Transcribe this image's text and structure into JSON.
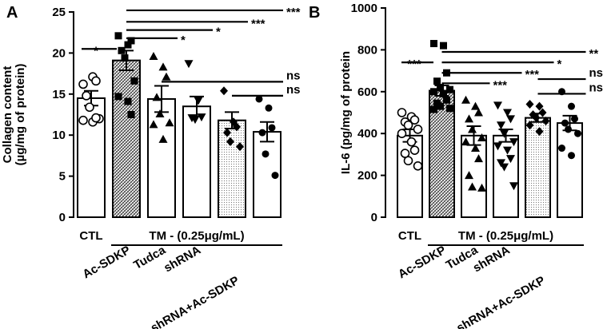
{
  "chart_data": [
    {
      "panel": "A",
      "type": "bar",
      "ylabel": "Collagen  content",
      "ylabel2": "(µg/mg of protein)",
      "ylim": [
        0,
        25
      ],
      "yticks": [
        0,
        5,
        10,
        15,
        20,
        25
      ],
      "groups": [
        {
          "name": "CTL",
          "mean": 14.5,
          "sem": 0.9,
          "fill": "white",
          "marker": "circle",
          "points": [
            16.2,
            17.1,
            16.6,
            14.8,
            13.4,
            12.0,
            11.8,
            11.6,
            12.1
          ]
        },
        {
          "name": "Ac-SDKP",
          "mean": 19.1,
          "sem": 1.2,
          "fill": "hatch",
          "marker": "square",
          "points": [
            22.1,
            21.0,
            21.5,
            20.3,
            19.4,
            16.6,
            14.7,
            14.1,
            12.5
          ]
        },
        {
          "name": "Tudca",
          "mean": 14.4,
          "sem": 1.6,
          "fill": "white",
          "marker": "triangle",
          "points": [
            19.6,
            18.3,
            17.1,
            14.6,
            12.6,
            11.5,
            11.3,
            9.5
          ]
        },
        {
          "name": "shRNA",
          "mean": 13.5,
          "sem": 1.2,
          "fill": "white",
          "marker": "triangle-down",
          "points": [
            18.7,
            14.2,
            12.2,
            12.1,
            11.9
          ]
        },
        {
          "name": "shRNA+Ac-SDKP",
          "mean": 11.8,
          "sem": 1.0,
          "fill": "dots",
          "marker": "diamond",
          "points": [
            15.4,
            11.6,
            11.0,
            10.3,
            9.2,
            8.6
          ]
        },
        {
          "name": "",
          "mean": 10.4,
          "sem": 1.2,
          "fill": "white",
          "marker": "dot",
          "points": [
            14.4,
            13.3,
            10.9,
            10.3,
            7.7,
            5.1
          ]
        }
      ],
      "comparisons": [
        {
          "label": "*",
          "from": 0,
          "to": 1,
          "at": 20.5
        },
        {
          "label": "***",
          "from": 1,
          "to": 5,
          "at": 25.2
        },
        {
          "label": "***",
          "from": 1,
          "to": 4,
          "at": 23.8
        },
        {
          "label": "*",
          "from": 1,
          "to": 3,
          "at": 22.8
        },
        {
          "label": "*",
          "from": 1,
          "to": 2,
          "at": 21.8
        },
        {
          "label": "ns",
          "from": 2,
          "to": 5,
          "at": 16.5
        },
        {
          "label": "ns",
          "from": 4,
          "to": 5,
          "at": 14.8
        }
      ]
    },
    {
      "panel": "B",
      "type": "bar",
      "ylabel": "IL-6 (pg/mg of protein",
      "ylim": [
        0,
        1000
      ],
      "yticks": [
        0,
        200,
        400,
        600,
        800,
        1000
      ],
      "groups": [
        {
          "name": "CTL",
          "mean": 390,
          "sem": 30,
          "fill": "white",
          "marker": "circle",
          "points": [
            500,
            480,
            465,
            455,
            440,
            420,
            400,
            360,
            320,
            305,
            270,
            245
          ]
        },
        {
          "name": "Ac-SDKP",
          "mean": 605,
          "sem": 25,
          "fill": "hatch",
          "marker": "square",
          "points": [
            830,
            820,
            690,
            650,
            620,
            610,
            600,
            590,
            560,
            545,
            530,
            520,
            515
          ]
        },
        {
          "name": "Tudca",
          "mean": 390,
          "sem": 45,
          "fill": "white",
          "marker": "triangle",
          "points": [
            560,
            530,
            500,
            470,
            420,
            380,
            360,
            330,
            280,
            200,
            145,
            140
          ]
        },
        {
          "name": "shRNA",
          "mean": 390,
          "sem": 30,
          "fill": "white",
          "marker": "triangle-down",
          "points": [
            535,
            500,
            470,
            440,
            400,
            360,
            340,
            320,
            280,
            260,
            240,
            150
          ]
        },
        {
          "name": "shRNA+Ac-SDKP",
          "mean": 475,
          "sem": 20,
          "fill": "dots",
          "marker": "diamond",
          "points": [
            540,
            530,
            500,
            490,
            475,
            460,
            440,
            410
          ]
        },
        {
          "name": "",
          "mean": 450,
          "sem": 35,
          "fill": "white",
          "marker": "dot",
          "points": [
            600,
            530,
            470,
            450,
            420,
            400,
            330,
            295
          ]
        }
      ],
      "comparisons": [
        {
          "label": "***",
          "from": 0,
          "to": 1,
          "at": 740
        },
        {
          "label": "**",
          "from": 1,
          "to": 5,
          "at": 790
        },
        {
          "label": "*",
          "from": 1,
          "to": 4,
          "at": 740
        },
        {
          "label": "***",
          "from": 1,
          "to": 3,
          "at": 690
        },
        {
          "label": "***",
          "from": 1,
          "to": 2,
          "at": 640
        },
        {
          "label": "ns",
          "from": 4,
          "to": 5,
          "at": 660
        },
        {
          "label": "ns",
          "from": 4,
          "to": 5,
          "at": 590
        }
      ]
    }
  ],
  "labels": {
    "panel_a": "A",
    "panel_b": "B",
    "ctl": "CTL",
    "treatment": "TM - (0.25μg/mL)"
  }
}
